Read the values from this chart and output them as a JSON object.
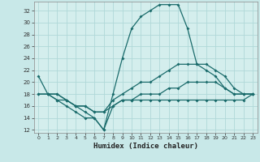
{
  "title": "",
  "xlabel": "Humidex (Indice chaleur)",
  "xlim": [
    -0.5,
    23.5
  ],
  "ylim": [
    11.5,
    33.5
  ],
  "yticks": [
    12,
    14,
    16,
    18,
    20,
    22,
    24,
    26,
    28,
    30,
    32
  ],
  "xticks": [
    0,
    1,
    2,
    3,
    4,
    5,
    6,
    7,
    8,
    9,
    10,
    11,
    12,
    13,
    14,
    15,
    16,
    17,
    18,
    19,
    20,
    21,
    22,
    23
  ],
  "bg_color": "#c8e8e8",
  "plot_bg_color": "#d4eeed",
  "grid_color": "#b0d8d8",
  "line_color": "#1a6b6b",
  "line1_x": [
    0,
    1,
    2,
    3,
    4,
    5,
    6,
    7,
    8,
    9,
    10,
    11,
    12,
    13,
    14,
    15,
    16,
    17,
    18,
    19,
    20,
    21,
    22,
    23
  ],
  "line1_y": [
    21,
    18,
    18,
    17,
    16,
    15,
    14,
    12,
    18,
    24,
    29,
    31,
    32,
    33,
    33,
    33,
    29,
    23,
    22,
    21,
    19,
    18,
    18,
    18
  ],
  "line2_x": [
    0,
    1,
    2,
    3,
    4,
    5,
    6,
    7,
    8,
    9,
    10,
    11,
    12,
    13,
    14,
    15,
    16,
    17,
    18,
    19,
    20,
    21,
    22,
    23
  ],
  "line2_y": [
    18,
    18,
    18,
    17,
    16,
    16,
    15,
    15,
    17,
    18,
    19,
    20,
    20,
    21,
    22,
    23,
    23,
    23,
    23,
    22,
    21,
    19,
    18,
    18
  ],
  "line3_x": [
    0,
    1,
    2,
    3,
    4,
    5,
    6,
    7,
    8,
    9,
    10,
    11,
    12,
    13,
    14,
    15,
    16,
    17,
    18,
    19,
    20,
    21,
    22,
    23
  ],
  "line3_y": [
    18,
    18,
    17,
    17,
    16,
    16,
    15,
    15,
    16,
    17,
    17,
    18,
    18,
    18,
    19,
    19,
    20,
    20,
    20,
    20,
    19,
    18,
    18,
    18
  ],
  "line4_x": [
    1,
    2,
    3,
    4,
    5,
    6,
    7,
    8,
    9,
    10,
    11,
    12,
    13,
    14,
    15,
    16,
    17,
    18,
    19,
    20,
    21,
    22,
    23
  ],
  "line4_y": [
    18,
    17,
    16,
    15,
    14,
    14,
    12,
    16,
    17,
    17,
    17,
    17,
    17,
    17,
    17,
    17,
    17,
    17,
    17,
    17,
    17,
    17,
    18
  ]
}
